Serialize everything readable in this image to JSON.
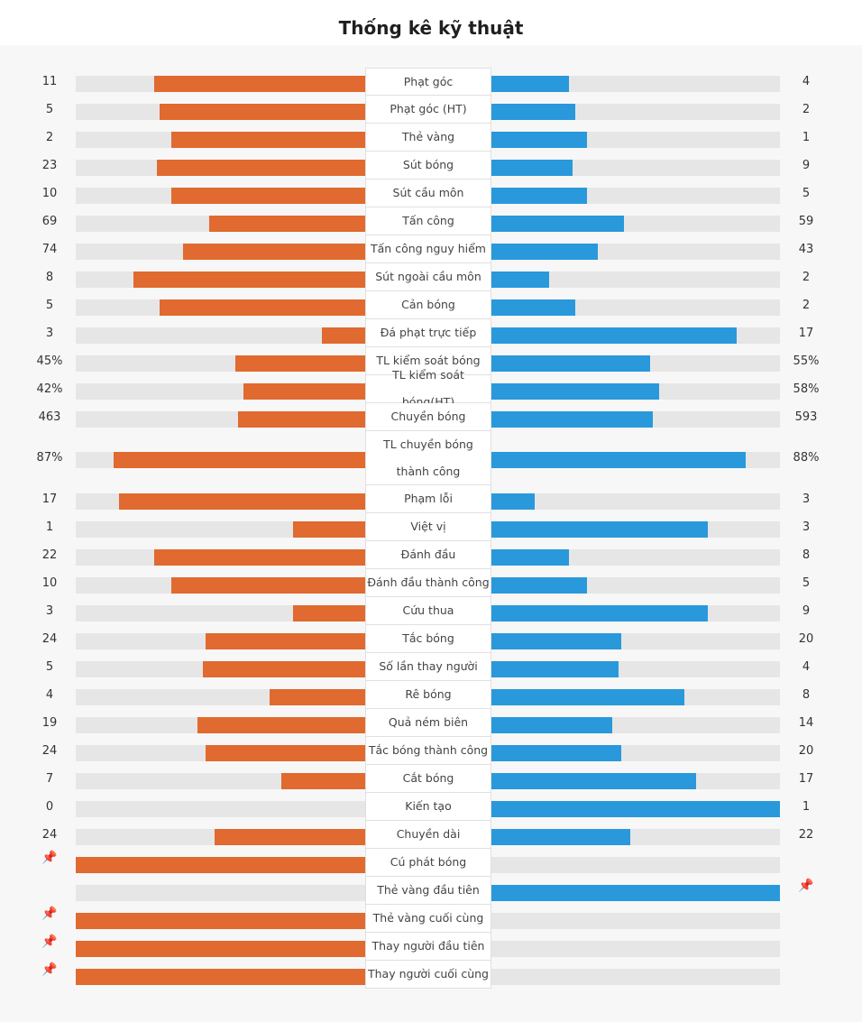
{
  "title": "Thống kê kỹ thuật",
  "colors": {
    "home": "#e06a2f",
    "away": "#2999db",
    "track": "#e6e6e6",
    "pin": "#f2c200"
  },
  "chart_data": {
    "type": "bar",
    "title": "Thống kê kỹ thuật",
    "stats": [
      {
        "label": "Phạt góc",
        "home": "11",
        "away": "4",
        "home_frac": 0.73,
        "away_frac": 0.27
      },
      {
        "label": "Phạt góc (HT)",
        "home": "5",
        "away": "2",
        "home_frac": 0.71,
        "away_frac": 0.29
      },
      {
        "label": "Thẻ vàng",
        "home": "2",
        "away": "1",
        "home_frac": 0.67,
        "away_frac": 0.33
      },
      {
        "label": "Sút bóng",
        "home": "23",
        "away": "9",
        "home_frac": 0.72,
        "away_frac": 0.28
      },
      {
        "label": "Sút cầu môn",
        "home": "10",
        "away": "5",
        "home_frac": 0.67,
        "away_frac": 0.33
      },
      {
        "label": "Tấn công",
        "home": "69",
        "away": "59",
        "home_frac": 0.54,
        "away_frac": 0.46
      },
      {
        "label": "Tấn công nguy hiểm",
        "home": "74",
        "away": "43",
        "home_frac": 0.63,
        "away_frac": 0.37
      },
      {
        "label": "Sút ngoài cầu môn",
        "home": "8",
        "away": "2",
        "home_frac": 0.8,
        "away_frac": 0.2
      },
      {
        "label": "Cản bóng",
        "home": "5",
        "away": "2",
        "home_frac": 0.71,
        "away_frac": 0.29
      },
      {
        "label": "Đá phạt trực tiếp",
        "home": "3",
        "away": "17",
        "home_frac": 0.15,
        "away_frac": 0.85
      },
      {
        "label": "TL kiểm soát bóng",
        "home": "45%",
        "away": "55%",
        "home_frac": 0.45,
        "away_frac": 0.55
      },
      {
        "label": "TL kiểm soát bóng(HT)",
        "home": "42%",
        "away": "58%",
        "home_frac": 0.42,
        "away_frac": 0.58
      },
      {
        "label": "Chuyền bóng",
        "home": "463",
        "away": "593",
        "home_frac": 0.44,
        "away_frac": 0.56
      },
      {
        "label": "TL chuyền bóng thành công",
        "home": "87%",
        "away": "88%",
        "home_frac": 0.87,
        "away_frac": 0.88,
        "tall": true
      },
      {
        "label": "Phạm lỗi",
        "home": "17",
        "away": "3",
        "home_frac": 0.85,
        "away_frac": 0.15
      },
      {
        "label": "Việt vị",
        "home": "1",
        "away": "3",
        "home_frac": 0.25,
        "away_frac": 0.75
      },
      {
        "label": "Đánh đầu",
        "home": "22",
        "away": "8",
        "home_frac": 0.73,
        "away_frac": 0.27
      },
      {
        "label": "Đánh đầu thành công",
        "home": "10",
        "away": "5",
        "home_frac": 0.67,
        "away_frac": 0.33
      },
      {
        "label": "Cứu thua",
        "home": "3",
        "away": "9",
        "home_frac": 0.25,
        "away_frac": 0.75
      },
      {
        "label": "Tắc bóng",
        "home": "24",
        "away": "20",
        "home_frac": 0.55,
        "away_frac": 0.45
      },
      {
        "label": "Số lần thay người",
        "home": "5",
        "away": "4",
        "home_frac": 0.56,
        "away_frac": 0.44
      },
      {
        "label": "Rê bóng",
        "home": "4",
        "away": "8",
        "home_frac": 0.33,
        "away_frac": 0.67
      },
      {
        "label": "Quả ném biên",
        "home": "19",
        "away": "14",
        "home_frac": 0.58,
        "away_frac": 0.42
      },
      {
        "label": "Tắc bóng thành công",
        "home": "24",
        "away": "20",
        "home_frac": 0.55,
        "away_frac": 0.45
      },
      {
        "label": "Cắt bóng",
        "home": "7",
        "away": "17",
        "home_frac": 0.29,
        "away_frac": 0.71
      },
      {
        "label": "Kiến tạo",
        "home": "0",
        "away": "1",
        "home_frac": 0,
        "away_frac": 1
      },
      {
        "label": "Chuyền dài",
        "home": "24",
        "away": "22",
        "home_frac": 0.52,
        "away_frac": 0.48
      },
      {
        "label": "Cú phát bóng",
        "home": "",
        "away": "",
        "home_frac": 1,
        "away_frac": 0,
        "home_pin": true,
        "away_pin": false
      },
      {
        "label": "Thẻ vàng đầu tiên",
        "home": "",
        "away": "",
        "home_frac": 0,
        "away_frac": 1,
        "home_pin": false,
        "away_pin": true
      },
      {
        "label": "Thẻ vàng cuối cùng",
        "home": "",
        "away": "",
        "home_frac": 1,
        "away_frac": 0,
        "home_pin": true,
        "away_pin": false
      },
      {
        "label": "Thay người đầu tiên",
        "home": "",
        "away": "",
        "home_frac": 1,
        "away_frac": 0,
        "home_pin": true,
        "away_pin": false
      },
      {
        "label": "Thay người cuối cùng",
        "home": "",
        "away": "",
        "home_frac": 1,
        "away_frac": 0,
        "home_pin": true,
        "away_pin": false
      }
    ]
  }
}
